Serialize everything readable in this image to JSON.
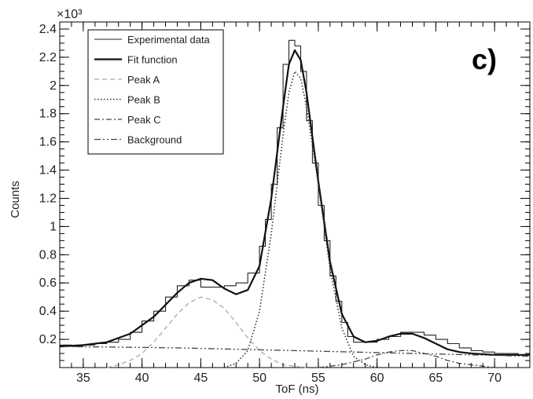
{
  "chart_data": {
    "type": "line",
    "panel_label": "c)",
    "xlabel": "ToF (ns)",
    "ylabel": "Counts",
    "y_multiplier": "×10³",
    "xlim": [
      33,
      73
    ],
    "ylim": [
      0,
      2.45
    ],
    "x_ticks": [
      35,
      40,
      45,
      50,
      55,
      60,
      65,
      70
    ],
    "x_tick_labels": [
      "35",
      "40",
      "45",
      "50",
      "55",
      "60",
      "65",
      "70"
    ],
    "y_ticks": [
      0.2,
      0.4,
      0.6,
      0.8,
      1,
      1.2,
      1.4,
      1.6,
      1.8,
      2,
      2.2,
      2.4
    ],
    "y_tick_labels": [
      "0.2",
      "0.4",
      "0.6",
      "0.8",
      "1",
      "1.2",
      "1.4",
      "1.6",
      "1.8",
      "2",
      "2.2",
      "2.4"
    ],
    "grid": false,
    "legend_position": "top-left",
    "series": [
      {
        "name": "Experimental data",
        "style": "step",
        "x": [
          33,
          34,
          35,
          36,
          37,
          38,
          39,
          40,
          41,
          42,
          43,
          44,
          45,
          46,
          47,
          48,
          49,
          50,
          50.5,
          51,
          51.5,
          52,
          52.5,
          53,
          53.5,
          54,
          54.5,
          55,
          55.5,
          56,
          56.5,
          57,
          57.5,
          58,
          59,
          60,
          61,
          62,
          63,
          64,
          65,
          66,
          67,
          68,
          69,
          70,
          71,
          72,
          73
        ],
        "y": [
          0.16,
          0.15,
          0.16,
          0.17,
          0.18,
          0.2,
          0.25,
          0.33,
          0.4,
          0.5,
          0.58,
          0.62,
          0.57,
          0.57,
          0.58,
          0.6,
          0.67,
          0.86,
          1.05,
          1.3,
          1.7,
          2.15,
          2.32,
          2.28,
          2.1,
          1.75,
          1.45,
          1.15,
          0.9,
          0.65,
          0.47,
          0.32,
          0.22,
          0.18,
          0.18,
          0.2,
          0.22,
          0.25,
          0.25,
          0.23,
          0.2,
          0.17,
          0.14,
          0.12,
          0.11,
          0.1,
          0.1,
          0.09,
          0.09
        ]
      },
      {
        "name": "Fit function",
        "style": "solid-thick",
        "x": [
          33,
          35,
          37,
          39,
          41,
          43,
          44,
          45,
          46,
          47,
          48,
          49,
          50,
          51,
          52,
          52.5,
          53,
          53.5,
          54,
          55,
          56,
          57,
          58,
          59,
          60,
          61,
          62,
          63,
          64,
          65,
          66,
          67,
          68,
          70,
          73
        ],
        "y": [
          0.15,
          0.16,
          0.18,
          0.24,
          0.36,
          0.53,
          0.6,
          0.63,
          0.62,
          0.56,
          0.52,
          0.55,
          0.72,
          1.2,
          1.85,
          2.15,
          2.25,
          2.18,
          1.95,
          1.32,
          0.75,
          0.38,
          0.22,
          0.18,
          0.19,
          0.22,
          0.24,
          0.24,
          0.21,
          0.17,
          0.13,
          0.11,
          0.1,
          0.09,
          0.09
        ]
      },
      {
        "name": "Peak A",
        "style": "dashed",
        "x": [
          37,
          38,
          39,
          40,
          41,
          42,
          43,
          44,
          45,
          46,
          47,
          48,
          49,
          50,
          51,
          52,
          53,
          54
        ],
        "y": [
          0.0,
          0.02,
          0.05,
          0.1,
          0.18,
          0.28,
          0.38,
          0.46,
          0.5,
          0.48,
          0.42,
          0.32,
          0.21,
          0.12,
          0.06,
          0.02,
          0.01,
          0.0
        ]
      },
      {
        "name": "Peak B",
        "style": "dotted",
        "x": [
          47,
          48,
          49,
          50,
          51,
          52,
          52.5,
          53,
          53.5,
          54,
          55,
          56,
          57,
          58,
          59,
          60
        ],
        "y": [
          0.0,
          0.03,
          0.12,
          0.4,
          0.95,
          1.65,
          1.95,
          2.1,
          2.05,
          1.85,
          1.3,
          0.7,
          0.28,
          0.08,
          0.02,
          0.0
        ]
      },
      {
        "name": "Peak C",
        "style": "dash-dot",
        "x": [
          55,
          56,
          57,
          58,
          59,
          60,
          61,
          62,
          63,
          64,
          65,
          66,
          67,
          68,
          69,
          70,
          71
        ],
        "y": [
          0.0,
          0.01,
          0.02,
          0.04,
          0.06,
          0.09,
          0.11,
          0.12,
          0.12,
          0.1,
          0.08,
          0.05,
          0.03,
          0.02,
          0.01,
          0.0,
          0.0
        ]
      },
      {
        "name": "Background",
        "style": "dash-dot-dot",
        "x": [
          33,
          43,
          53,
          63,
          73
        ],
        "y": [
          0.15,
          0.14,
          0.12,
          0.1,
          0.08
        ]
      }
    ]
  }
}
